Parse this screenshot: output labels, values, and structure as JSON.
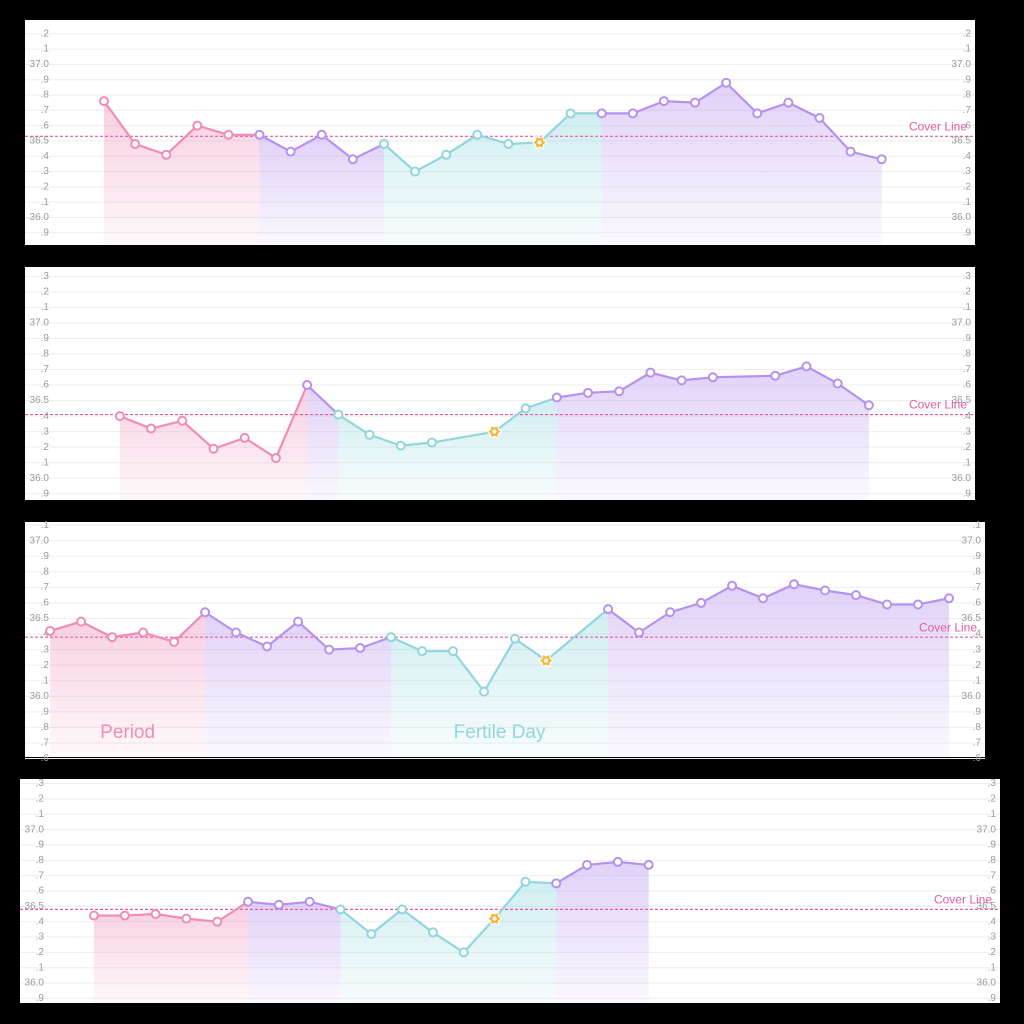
{
  "chart_data": [
    {
      "type": "line",
      "x": [
        0,
        1,
        2,
        3,
        4,
        5,
        6,
        7,
        8,
        9,
        10,
        11,
        12,
        13,
        14,
        15,
        16,
        17,
        18,
        19,
        20,
        21,
        22,
        23,
        24,
        25
      ],
      "values": [
        36.76,
        36.48,
        36.41,
        36.6,
        36.54,
        36.54,
        36.43,
        36.54,
        36.38,
        36.48,
        36.3,
        36.41,
        36.54,
        36.48,
        36.49,
        36.68,
        36.68,
        36.68,
        36.76,
        36.75,
        36.88,
        36.68,
        36.75,
        36.65,
        36.43,
        36.38
      ],
      "xlim": [
        -2.54,
        28.0
      ],
      "ylim": [
        35.82,
        37.29
      ],
      "yticks": [
        {
          "value": 37.2,
          "label": ".2"
        },
        {
          "value": 37.1,
          "label": ".1"
        },
        {
          "value": 37,
          "label": "37.0"
        },
        {
          "value": 36.9,
          "label": ".9"
        },
        {
          "value": 36.8,
          "label": ".8"
        },
        {
          "value": 36.7,
          "label": ".7"
        },
        {
          "value": 36.6,
          "label": ".6"
        },
        36.5,
        {
          "value": 36.4,
          "label": ".4"
        },
        {
          "value": 36.3,
          "label": ".3"
        },
        {
          "value": 36.2,
          "label": ".2"
        },
        {
          "value": 36.1,
          "label": ".1"
        },
        {
          "value": 36,
          "label": "36.0"
        },
        {
          "value": 35.9,
          "label": ".9"
        }
      ],
      "grid": true,
      "cover_line": {
        "label": "Cover Line",
        "value": 36.53,
        "color": "#e45ba0"
      },
      "phases": [
        {
          "start": 0,
          "end": 5,
          "color": "#f08cb6"
        },
        {
          "start": 5,
          "end": 9,
          "color": "#b692ee"
        },
        {
          "start": 9,
          "end": 16,
          "color": "#90d6de"
        },
        {
          "start": 16,
          "end": 25,
          "color": "#b692ee"
        }
      ],
      "ovulation": 14,
      "ovulation_color": "#f6b73c"
    },
    {
      "type": "line",
      "x": [
        0,
        1,
        2,
        3,
        4,
        5,
        6,
        7,
        8,
        9,
        10,
        12,
        13,
        14,
        15,
        16,
        17,
        18,
        19,
        21,
        22,
        23,
        24
      ],
      "values": [
        36.4,
        36.32,
        36.37,
        36.19,
        36.26,
        36.13,
        36.6,
        36.41,
        36.28,
        36.21,
        36.23,
        36.3,
        36.45,
        36.52,
        36.55,
        36.56,
        36.68,
        36.63,
        36.65,
        36.66,
        36.72,
        36.61,
        36.47
      ],
      "xlim": [
        -3.04,
        27.4
      ],
      "ylim": [
        35.86,
        37.36
      ],
      "yticks": [
        {
          "value": 37.3,
          "label": ".3"
        },
        {
          "value": 37.2,
          "label": ".2"
        },
        {
          "value": 37.1,
          "label": ".1"
        },
        {
          "value": 37,
          "label": "37.0"
        },
        {
          "value": 36.9,
          "label": ".9"
        },
        {
          "value": 36.8,
          "label": ".8"
        },
        {
          "value": 36.7,
          "label": ".7"
        },
        {
          "value": 36.6,
          "label": ".6"
        },
        36.5,
        {
          "value": 36.4,
          "label": ".4"
        },
        {
          "value": 36.3,
          "label": ".3"
        },
        {
          "value": 36.2,
          "label": ".2"
        },
        {
          "value": 36.1,
          "label": ".1"
        },
        {
          "value": 36,
          "label": "36.0"
        },
        {
          "value": 35.9,
          "label": ".9"
        }
      ],
      "grid": true,
      "cover_line": {
        "label": "Cover Line",
        "value": 36.41,
        "color": "#e45ba0"
      },
      "phases": [
        {
          "start": 0,
          "end": 6,
          "color": "#f08cb6"
        },
        {
          "start": 6,
          "end": 7,
          "color": "#b692ee"
        },
        {
          "start": 7,
          "end": 13,
          "color": "#90d6de"
        },
        {
          "start": 13,
          "end": 22,
          "color": "#b692ee"
        }
      ],
      "ovulation": 11,
      "ovulation_color": "#f6b73c"
    },
    {
      "type": "line",
      "x": [
        0,
        1,
        2,
        3,
        4,
        5,
        6,
        7,
        8,
        9,
        10,
        11,
        12,
        13,
        14,
        15,
        16,
        18,
        19,
        20,
        21,
        22,
        23,
        24,
        25,
        26,
        27,
        28,
        29
      ],
      "values": [
        36.42,
        36.48,
        36.38,
        36.41,
        36.35,
        36.54,
        36.41,
        36.32,
        36.48,
        36.3,
        36.31,
        36.38,
        36.29,
        36.29,
        36.03,
        36.37,
        36.23,
        36.56,
        36.41,
        36.54,
        36.6,
        36.71,
        36.63,
        36.72,
        36.68,
        36.65,
        36.59,
        36.59,
        36.63
      ],
      "xlim": [
        -0.81,
        30.16
      ],
      "ylim": [
        35.61,
        37.12
      ],
      "yticks": [
        {
          "value": 37.1,
          "label": ".1"
        },
        {
          "value": 37,
          "label": "37.0"
        },
        {
          "value": 36.9,
          "label": ".9"
        },
        {
          "value": 36.8,
          "label": ".8"
        },
        {
          "value": 36.7,
          "label": ".7"
        },
        {
          "value": 36.6,
          "label": ".6"
        },
        36.5,
        {
          "value": 36.4,
          "label": ".4"
        },
        {
          "value": 36.3,
          "label": ".3"
        },
        {
          "value": 36.2,
          "label": ".2"
        },
        {
          "value": 36.1,
          "label": ".1"
        },
        {
          "value": 36,
          "label": "36.0"
        },
        {
          "value": 35.9,
          "label": ".9"
        },
        {
          "value": 35.8,
          "label": ".8"
        },
        {
          "value": 35.7,
          "label": ".7"
        },
        {
          "value": 35.6,
          "label": ".6"
        }
      ],
      "grid": true,
      "cover_line": {
        "label": "Cover Line",
        "value": 36.38,
        "color": "#e45ba0"
      },
      "phases": [
        {
          "start": 0,
          "end": 5,
          "color": "#f08cb6",
          "label": "Period"
        },
        {
          "start": 5,
          "end": 11,
          "color": "#b692ee"
        },
        {
          "start": 11,
          "end": 17,
          "color": "#90d6de",
          "label": "Fertile Day"
        },
        {
          "start": 17,
          "end": 28,
          "color": "#b692ee"
        }
      ],
      "ovulation": 16,
      "ovulation_color": "#f6b73c"
    },
    {
      "type": "line",
      "x": [
        0,
        1,
        2,
        3,
        4,
        5,
        6,
        7,
        8,
        9,
        10,
        11,
        12,
        13,
        14,
        15,
        16,
        17,
        18
      ],
      "values": [
        36.44,
        36.44,
        36.45,
        36.42,
        36.4,
        36.53,
        36.51,
        36.53,
        36.48,
        36.32,
        36.48,
        36.33,
        36.2,
        36.42,
        36.66,
        36.65,
        36.77,
        36.79,
        36.77
      ],
      "xlim": [
        -2.4,
        29.4
      ],
      "ylim": [
        35.87,
        37.33
      ],
      "yticks": [
        {
          "value": 37.3,
          "label": ".3"
        },
        {
          "value": 37.2,
          "label": ".2"
        },
        {
          "value": 37.1,
          "label": ".1"
        },
        {
          "value": 37,
          "label": "37.0"
        },
        {
          "value": 36.9,
          "label": ".9"
        },
        {
          "value": 36.8,
          "label": ".8"
        },
        {
          "value": 36.7,
          "label": ".7"
        },
        {
          "value": 36.6,
          "label": ".6"
        },
        36.5,
        {
          "value": 36.4,
          "label": ".4"
        },
        {
          "value": 36.3,
          "label": ".3"
        },
        {
          "value": 36.2,
          "label": ".2"
        },
        {
          "value": 36.1,
          "label": ".1"
        },
        {
          "value": 36,
          "label": "36.0"
        },
        {
          "value": 35.9,
          "label": ".9"
        }
      ],
      "grid": true,
      "cover_line": {
        "label": "Cover Line",
        "value": 36.48,
        "color": "#e45ba0"
      },
      "phases": [
        {
          "start": 0,
          "end": 5,
          "color": "#f08cb6"
        },
        {
          "start": 5,
          "end": 8,
          "color": "#b692ee"
        },
        {
          "start": 8,
          "end": 15,
          "color": "#90d6de"
        },
        {
          "start": 15,
          "end": 18,
          "color": "#b692ee"
        }
      ],
      "ovulation": 13,
      "ovulation_color": "#f6b73c"
    }
  ]
}
